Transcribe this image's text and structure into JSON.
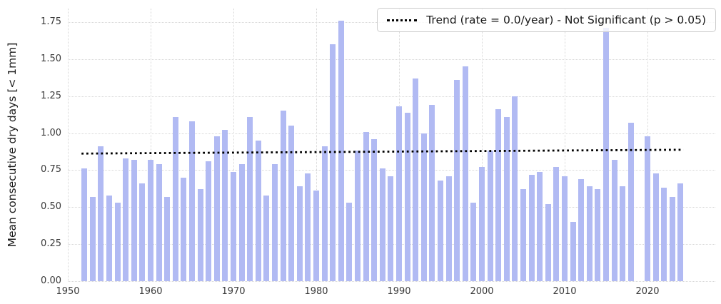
{
  "figure": {
    "background_color": "#ffffff",
    "grid_color": "#d7d7d7",
    "tick_text_color": "#3a3a3a",
    "legend_border_color": "#cccccc"
  },
  "chart_data": {
    "type": "bar",
    "title": "",
    "xlabel": "",
    "ylabel": "Mean consecutive dry days [< 1mm]",
    "x_tick_labels": [
      "1950",
      "1960",
      "1970",
      "1980",
      "1990",
      "2000",
      "2010",
      "2020"
    ],
    "y_tick_labels": [
      "0.00",
      "0.25",
      "0.50",
      "0.75",
      "1.00",
      "1.25",
      "1.50",
      "1.75"
    ],
    "ylim": [
      0,
      1.84
    ],
    "xlim": [
      1948.5,
      2028
    ],
    "grid": true,
    "bar_color": "#b1baf3",
    "legend_label": "Trend (rate = 0.0/year) - Not Significant (p > 0.05)",
    "legend_position": "upper right",
    "trend": {
      "style": "dotted",
      "color": "#000000",
      "x": [
        1952,
        2024
      ],
      "y": [
        0.862,
        0.888
      ]
    },
    "years": [
      1952,
      1953,
      1954,
      1955,
      1956,
      1957,
      1958,
      1959,
      1960,
      1961,
      1962,
      1963,
      1964,
      1965,
      1966,
      1967,
      1968,
      1969,
      1970,
      1971,
      1972,
      1973,
      1974,
      1975,
      1976,
      1977,
      1978,
      1979,
      1980,
      1981,
      1982,
      1983,
      1984,
      1985,
      1986,
      1987,
      1988,
      1989,
      1990,
      1991,
      1992,
      1993,
      1994,
      1995,
      1996,
      1997,
      1998,
      1999,
      2000,
      2001,
      2002,
      2003,
      2004,
      2005,
      2006,
      2007,
      2008,
      2009,
      2010,
      2011,
      2012,
      2013,
      2014,
      2015,
      2016,
      2017,
      2018,
      2019,
      2020,
      2021,
      2022,
      2023,
      2024
    ],
    "values": [
      0.76,
      0.57,
      0.91,
      0.58,
      0.53,
      0.83,
      0.82,
      0.66,
      0.82,
      0.79,
      0.57,
      1.11,
      0.7,
      1.08,
      0.62,
      0.81,
      0.98,
      1.02,
      0.74,
      0.79,
      1.11,
      0.95,
      0.58,
      0.79,
      1.15,
      1.05,
      0.64,
      0.73,
      0.61,
      0.91,
      1.6,
      1.76,
      0.53,
      0.88,
      1.01,
      0.96,
      0.76,
      0.71,
      1.18,
      1.14,
      1.37,
      1.0,
      1.19,
      0.68,
      0.71,
      1.36,
      1.45,
      0.53,
      0.77,
      0.88,
      1.16,
      1.11,
      1.25,
      0.62,
      0.72,
      0.74,
      0.52,
      0.77,
      0.71,
      0.4,
      0.69,
      0.64,
      0.62,
      1.71,
      0.82,
      0.64,
      1.07,
      null,
      0.98,
      0.73,
      0.63,
      0.57,
      0.66
    ]
  }
}
